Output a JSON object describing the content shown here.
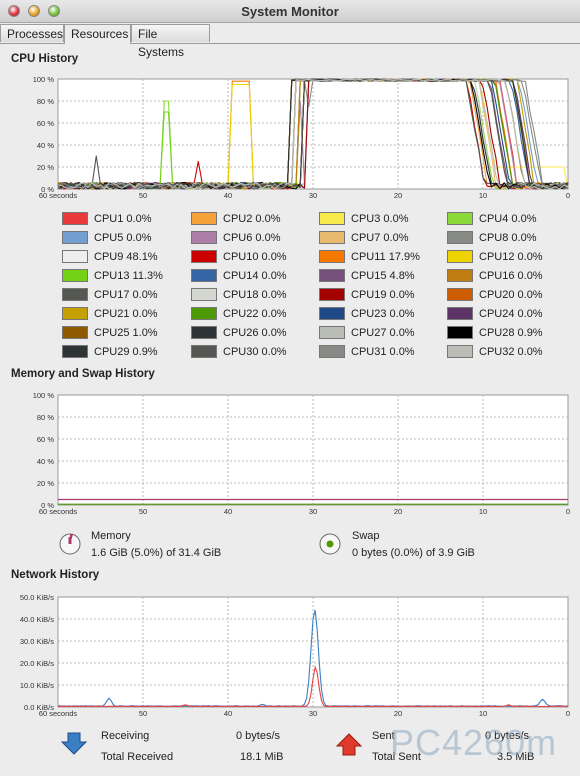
{
  "window": {
    "title": "System Monitor"
  },
  "tabs": [
    {
      "label": "Processes"
    },
    {
      "label": "Resources"
    },
    {
      "label": "File Systems"
    }
  ],
  "cpu": {
    "title": "CPU History",
    "y_ticks": [
      "100 %",
      "80 %",
      "60 %",
      "40 %",
      "20 %",
      "0 %"
    ],
    "x_ticks": [
      "60 seconds",
      "50",
      "40",
      "30",
      "20",
      "10",
      "0"
    ],
    "legend": [
      {
        "label": "CPU1 0.0%",
        "color": "#e83a3a"
      },
      {
        "label": "CPU2 0.0%",
        "color": "#f5a23a"
      },
      {
        "label": "CPU3 0.0%",
        "color": "#f5ea4a"
      },
      {
        "label": "CPU4 0.0%",
        "color": "#8ad83a"
      },
      {
        "label": "CPU5 0.0%",
        "color": "#729fcf"
      },
      {
        "label": "CPU6 0.0%",
        "color": "#ad7fa8"
      },
      {
        "label": "CPU7 0.0%",
        "color": "#e9b96e"
      },
      {
        "label": "CPU8 0.0%",
        "color": "#888a85"
      },
      {
        "label": "CPU9 48.1%",
        "color": "#eeeeec"
      },
      {
        "label": "CPU10 0.0%",
        "color": "#cc0000"
      },
      {
        "label": "CPU11 17.9%",
        "color": "#f57900"
      },
      {
        "label": "CPU12 0.0%",
        "color": "#edd400"
      },
      {
        "label": "CPU13 11.3%",
        "color": "#73d216"
      },
      {
        "label": "CPU14 0.0%",
        "color": "#3465a4"
      },
      {
        "label": "CPU15 4.8%",
        "color": "#75507b"
      },
      {
        "label": "CPU16 0.0%",
        "color": "#c17d11"
      },
      {
        "label": "CPU17 0.0%",
        "color": "#555753"
      },
      {
        "label": "CPU18 0.0%",
        "color": "#d3d7cf"
      },
      {
        "label": "CPU19 0.0%",
        "color": "#a40000"
      },
      {
        "label": "CPU20 0.0%",
        "color": "#ce5c00"
      },
      {
        "label": "CPU21 0.0%",
        "color": "#c4a000"
      },
      {
        "label": "CPU22 0.0%",
        "color": "#4e9a06"
      },
      {
        "label": "CPU23 0.0%",
        "color": "#204a87"
      },
      {
        "label": "CPU24 0.0%",
        "color": "#5c3566"
      },
      {
        "label": "CPU25 1.0%",
        "color": "#8f5902"
      },
      {
        "label": "CPU26 0.0%",
        "color": "#2e3436"
      },
      {
        "label": "CPU27 0.0%",
        "color": "#babdb6"
      },
      {
        "label": "CPU28 0.9%",
        "color": "#000000"
      },
      {
        "label": "CPU29 0.9%",
        "color": "#2e3436"
      },
      {
        "label": "CPU30 0.0%",
        "color": "#555753"
      },
      {
        "label": "CPU31 0.0%",
        "color": "#888a85"
      },
      {
        "label": "CPU32 0.0%",
        "color": "#babdb6"
      }
    ]
  },
  "memory": {
    "title": "Memory and Swap History",
    "y_ticks": [
      "100 %",
      "80 %",
      "60 %",
      "40 %",
      "20 %",
      "0 %"
    ],
    "x_ticks": [
      "60 seconds",
      "50",
      "40",
      "30",
      "20",
      "10",
      "0"
    ],
    "memory_label": "Memory",
    "memory_value": "1.6 GiB (5.0%) of 31.4 GiB",
    "memory_color": "#ad3a6a",
    "memory_fraction": 0.05,
    "swap_label": "Swap",
    "swap_value": "0 bytes (0.0%) of 3.9 GiB",
    "swap_color": "#4e9a06",
    "swap_fraction": 0.0
  },
  "network": {
    "title": "Network History",
    "y_ticks": [
      "50.0 KiB/s",
      "40.0 KiB/s",
      "30.0 KiB/s",
      "20.0 KiB/s",
      "10.0 KiB/s",
      "0.0 KiB/s"
    ],
    "x_ticks": [
      "60 seconds",
      "50",
      "40",
      "30",
      "20",
      "10",
      "0"
    ],
    "receiving_label": "Receiving",
    "receiving_value": "0 bytes/s",
    "total_received_label": "Total Received",
    "total_received_value": "18.1 MiB",
    "sending_label": "Sent",
    "sending_value": "0 bytes/s",
    "total_sent_label": "Total Sent",
    "total_sent_value": "3.5 MiB",
    "receive_color": "#3b7fc4",
    "send_color": "#e84040"
  },
  "watermark": "PC4260m"
}
